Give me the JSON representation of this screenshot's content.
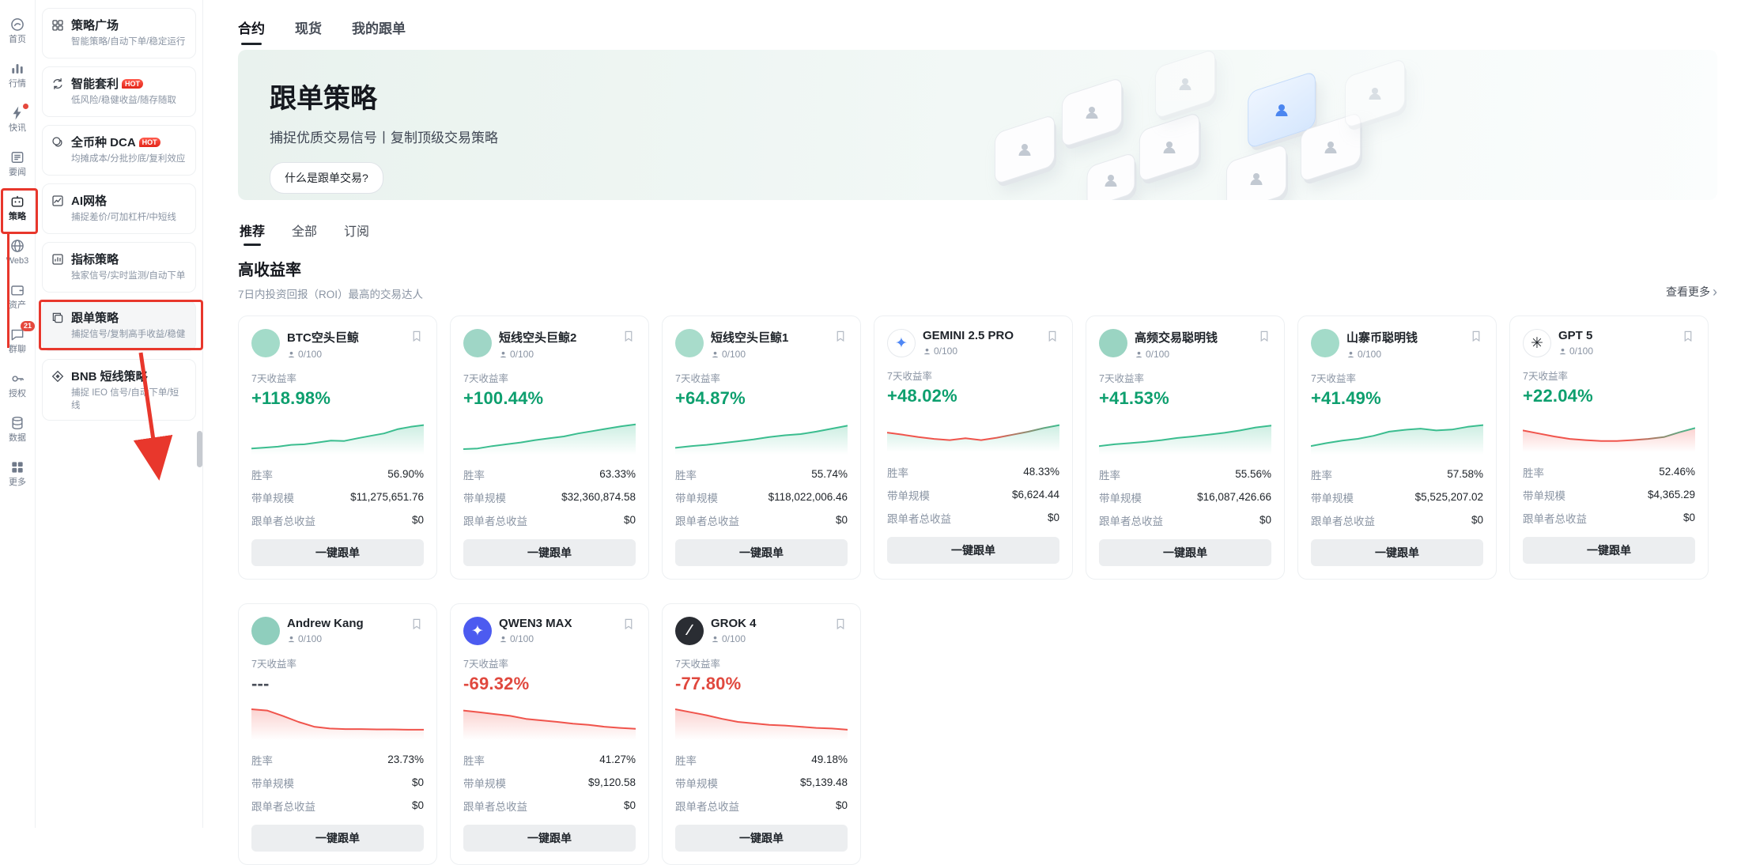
{
  "iconbar": {
    "items": [
      {
        "key": "home",
        "label": "首页",
        "icon": "home-icon"
      },
      {
        "key": "markets",
        "label": "行情",
        "icon": "markets-icon"
      },
      {
        "key": "flash-news",
        "label": "快讯",
        "icon": "flash-icon",
        "badge_dot": true
      },
      {
        "key": "headlines",
        "label": "要闻",
        "icon": "news-icon"
      },
      {
        "key": "strategy",
        "label": "策略",
        "icon": "strategy-icon",
        "active": true
      },
      {
        "key": "web3",
        "label": "Web3",
        "icon": "web3-icon"
      },
      {
        "key": "assets",
        "label": "资产",
        "icon": "assets-icon"
      },
      {
        "key": "group-chat",
        "label": "群聊",
        "icon": "chat-icon",
        "badge": "21"
      },
      {
        "key": "authorization",
        "label": "授权",
        "icon": "auth-icon"
      },
      {
        "key": "data",
        "label": "数据",
        "icon": "data-icon"
      },
      {
        "key": "more",
        "label": "更多",
        "icon": "more-icon"
      }
    ]
  },
  "sidebar": {
    "hot_label": "HOT",
    "items": [
      {
        "key": "strategy-plaza",
        "title": "策略广场",
        "subtitle": "智能策略/自动下单/稳定运行",
        "icon": "plaza-icon"
      },
      {
        "key": "smart-arbitrage",
        "title": "智能套利",
        "subtitle": "低风险/稳健收益/随存随取",
        "icon": "arbitrage-icon",
        "hot": true
      },
      {
        "key": "dca",
        "title": "全币种 DCA",
        "subtitle": "均摊成本/分批抄底/复利效应",
        "icon": "dca-icon",
        "hot": true
      },
      {
        "key": "ai-grid",
        "title": "AI网格",
        "subtitle": "捕捉差价/可加杠杆/中短线",
        "icon": "grid-icon"
      },
      {
        "key": "indicator-strategy",
        "title": "指标策略",
        "subtitle": "独家信号/实时监测/自动下单",
        "icon": "indicator-icon"
      },
      {
        "key": "copy-trading",
        "title": "跟单策略",
        "subtitle": "捕捉信号/复制高手收益/稳健",
        "icon": "copy-icon",
        "highlighted": true
      },
      {
        "key": "bnb-short",
        "title": "BNB 短线策略",
        "subtitle": "捕捉 IEO 信号/自动下单/短线",
        "icon": "bnb-icon"
      }
    ]
  },
  "main": {
    "tabs": [
      {
        "key": "futures",
        "label": "合约",
        "active": true
      },
      {
        "key": "spot",
        "label": "现货"
      },
      {
        "key": "my-copy-trading",
        "label": "我的跟单"
      }
    ],
    "banner": {
      "title": "跟单策略",
      "subtitle": "捕捉优质交易信号丨复制顶级交易策略",
      "button": "什么是跟单交易?"
    },
    "filter_tabs": [
      {
        "key": "recommended",
        "label": "推荐",
        "active": true
      },
      {
        "key": "all",
        "label": "全部"
      },
      {
        "key": "subscribed",
        "label": "订阅"
      }
    ],
    "section": {
      "title": "高收益率",
      "subtitle": "7日内投资回报（ROI）最高的交易达人",
      "more": "查看更多"
    },
    "labels": {
      "roi": "7天收益率",
      "win_rate": "胜率",
      "aum": "带单规模",
      "follower_pnl": "跟单者总收益",
      "follow_btn": "一键跟单"
    }
  },
  "colors": {
    "green_text": "#0d9f6e",
    "red_text": "#e0483e",
    "spark_green": "#3bbd8f",
    "spark_red": "#f0544c",
    "annotation_red": "#e8372c"
  },
  "cards": [
    {
      "key": "btc-short-whale",
      "name": "BTC空头巨鲸",
      "followers": "0/100",
      "roi": "+118.98%",
      "trend": "up",
      "win_rate": "56.90%",
      "aum": "$11,275,651.76",
      "follower_pnl": "$0",
      "avatar": {
        "bg": "#a3dbc9",
        "glyph": "",
        "glyph_color": ""
      },
      "spark": {
        "colors": [
          "#3bbd8f"
        ],
        "points": [
          0.1,
          0.13,
          0.16,
          0.22,
          0.24,
          0.3,
          0.36,
          0.35,
          0.44,
          0.52,
          0.6,
          0.74,
          0.82,
          0.88
        ]
      }
    },
    {
      "key": "short-whale-2",
      "name": "短线空头巨鲸2",
      "followers": "0/100",
      "roi": "+100.44%",
      "trend": "up",
      "win_rate": "63.33%",
      "aum": "$32,360,874.58",
      "follower_pnl": "$0",
      "avatar": {
        "bg": "#9fd6c6",
        "glyph": "",
        "glyph_color": ""
      },
      "spark": {
        "colors": [
          "#3bbd8f"
        ],
        "points": [
          0.08,
          0.1,
          0.18,
          0.24,
          0.3,
          0.38,
          0.44,
          0.5,
          0.6,
          0.68,
          0.76,
          0.84,
          0.9
        ]
      }
    },
    {
      "key": "short-whale-1",
      "name": "短线空头巨鲸1",
      "followers": "0/100",
      "roi": "+64.87%",
      "trend": "up",
      "win_rate": "55.74%",
      "aum": "$118,022,006.46",
      "follower_pnl": "$0",
      "avatar": {
        "bg": "#a8dccb",
        "glyph": "",
        "glyph_color": ""
      },
      "spark": {
        "colors": [
          "#3bbd8f"
        ],
        "points": [
          0.12,
          0.18,
          0.22,
          0.28,
          0.34,
          0.4,
          0.48,
          0.54,
          0.58,
          0.66,
          0.76,
          0.86
        ]
      }
    },
    {
      "key": "gemini-25-pro",
      "name": "GEMINI 2.5 PRO",
      "followers": "0/100",
      "roi": "+48.02%",
      "trend": "up",
      "win_rate": "48.33%",
      "aum": "$6,624.44",
      "follower_pnl": "$0",
      "avatar": {
        "bg": "#ffffff",
        "border": "#e6e9ed",
        "glyph": "✦",
        "glyph_color": "#4f87f5"
      },
      "spark": {
        "colors": [
          "#f0544c",
          "#3bbd8f"
        ],
        "points": [
          0.55,
          0.48,
          0.4,
          0.34,
          0.3,
          0.36,
          0.3,
          0.38,
          0.48,
          0.58,
          0.7,
          0.8
        ]
      }
    },
    {
      "key": "hft-smart-money",
      "name": "高频交易聪明钱",
      "followers": "0/100",
      "roi": "+41.53%",
      "trend": "up",
      "win_rate": "55.56%",
      "aum": "$16,087,426.66",
      "follower_pnl": "$0",
      "avatar": {
        "bg": "#9ad4c2",
        "glyph": "",
        "glyph_color": ""
      },
      "spark": {
        "colors": [
          "#3bbd8f"
        ],
        "points": [
          0.18,
          0.24,
          0.28,
          0.32,
          0.38,
          0.45,
          0.5,
          0.56,
          0.62,
          0.7,
          0.8,
          0.86
        ]
      }
    },
    {
      "key": "altcoin-smart-money",
      "name": "山寨币聪明钱",
      "followers": "0/100",
      "roi": "+41.49%",
      "trend": "up",
      "win_rate": "57.58%",
      "aum": "$5,525,207.02",
      "follower_pnl": "$0",
      "avatar": {
        "bg": "#a3dbc9",
        "glyph": "",
        "glyph_color": ""
      },
      "spark": {
        "colors": [
          "#3bbd8f"
        ],
        "points": [
          0.18,
          0.28,
          0.36,
          0.42,
          0.52,
          0.66,
          0.72,
          0.76,
          0.7,
          0.73,
          0.82,
          0.88
        ]
      }
    },
    {
      "key": "gpt-5",
      "name": "GPT 5",
      "followers": "0/100",
      "roi": "+22.04%",
      "trend": "up",
      "win_rate": "52.46%",
      "aum": "$4,365.29",
      "follower_pnl": "$0",
      "avatar": {
        "bg": "#ffffff",
        "border": "#e6e9ed",
        "glyph": "✳",
        "glyph_color": "#1e2329"
      },
      "spark": {
        "colors": [
          "#f0544c",
          "#3bbd8f"
        ],
        "fill": "#f0544c",
        "points": [
          0.62,
          0.52,
          0.42,
          0.34,
          0.3,
          0.27,
          0.27,
          0.3,
          0.34,
          0.4,
          0.56,
          0.7
        ]
      }
    },
    {
      "key": "andrew-kang",
      "name": "Andrew Kang",
      "followers": "0/100",
      "roi": "---",
      "trend": "flat",
      "win_rate": "23.73%",
      "aum": "$0",
      "follower_pnl": "$0",
      "avatar": {
        "bg": "#8fcebd",
        "glyph": "",
        "glyph_color": ""
      },
      "spark": {
        "colors": [
          "#f0544c"
        ],
        "points": [
          0.92,
          0.88,
          0.7,
          0.5,
          0.34,
          0.28,
          0.26,
          0.26,
          0.25,
          0.25,
          0.24,
          0.24
        ]
      }
    },
    {
      "key": "qwen3-max",
      "name": "QWEN3 MAX",
      "followers": "0/100",
      "roi": "-69.32%",
      "trend": "down",
      "win_rate": "41.27%",
      "aum": "$9,120.58",
      "follower_pnl": "$0",
      "avatar": {
        "bg": "#4c5bf0",
        "glyph": "✦",
        "glyph_color": "#ffffff"
      },
      "spark": {
        "colors": [
          "#f0544c"
        ],
        "points": [
          0.88,
          0.82,
          0.76,
          0.7,
          0.6,
          0.55,
          0.5,
          0.44,
          0.4,
          0.34,
          0.3,
          0.27
        ]
      }
    },
    {
      "key": "grok-4",
      "name": "GROK 4",
      "followers": "0/100",
      "roi": "-77.80%",
      "trend": "down",
      "win_rate": "49.18%",
      "aum": "$5,139.48",
      "follower_pnl": "$0",
      "avatar": {
        "bg": "#2a2d33",
        "glyph": "∕",
        "glyph_color": "#ffffff"
      },
      "spark": {
        "colors": [
          "#f0544c"
        ],
        "points": [
          0.92,
          0.82,
          0.72,
          0.6,
          0.5,
          0.45,
          0.4,
          0.38,
          0.34,
          0.3,
          0.28,
          0.24
        ]
      }
    }
  ]
}
